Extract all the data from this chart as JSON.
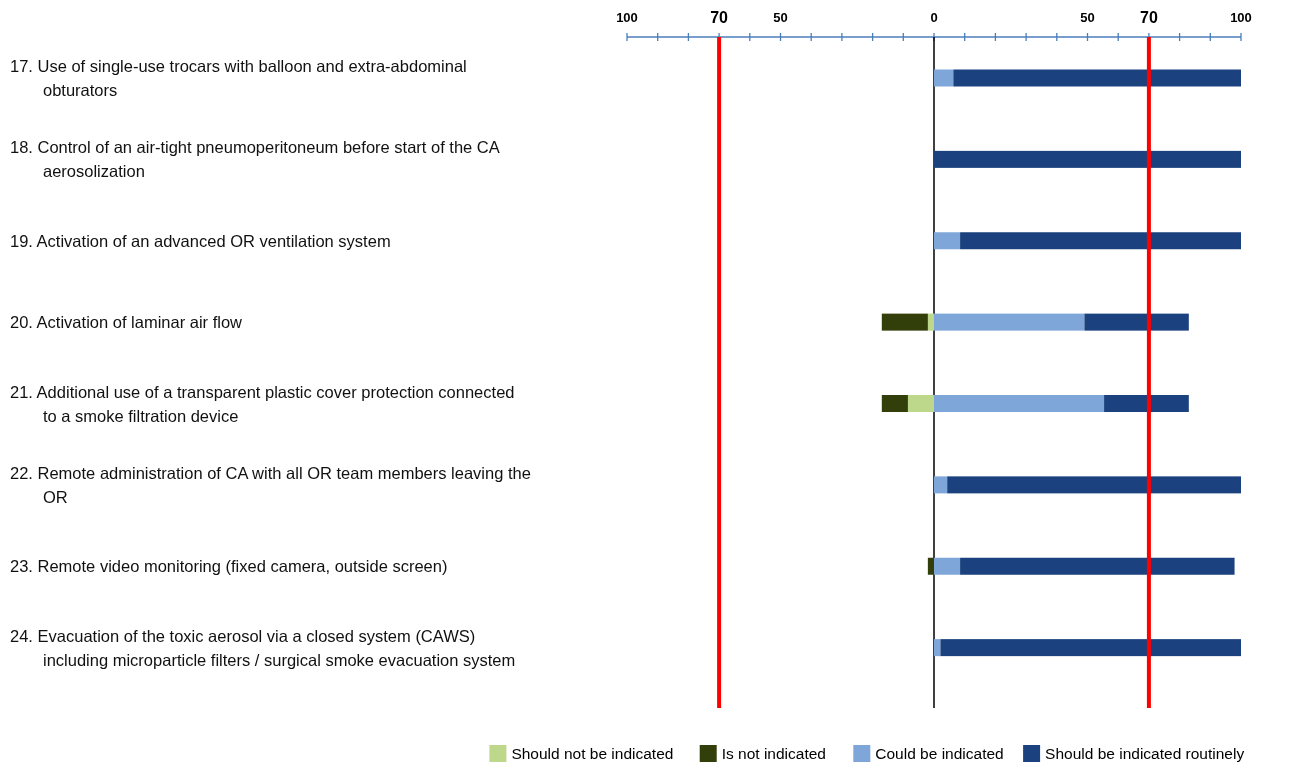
{
  "chart_data": {
    "type": "bar",
    "orientation": "horizontal",
    "stacked": true,
    "categories": [
      "17. Use of single-use trocars with balloon and extra-abdominal obturators",
      "18. Control of an air-tight pneumoperitoneum before start of the CA aerosolization",
      "19. Activation of an advanced OR ventilation system",
      "20. Activation of laminar air flow",
      "21. Additional use of a transparent plastic cover protection connected to a smoke filtration device",
      "22. Remote administration of CA with all OR team members leaving the OR",
      "23. Remote video monitoring (fixed camera, outside screen)",
      "24. Evacuation of the toxic aerosol via a closed system (CAWS) including microparticle filters / surgical smoke evacuation system"
    ],
    "series": [
      {
        "name": "Should not be indicated",
        "color": "#bdd88a",
        "values": [
          0,
          0,
          0,
          -2,
          -8.5,
          0,
          0,
          0
        ]
      },
      {
        "name": "Is not indicated",
        "color": "#333f0a",
        "values": [
          0,
          0,
          0,
          -15,
          -8.5,
          0,
          -2,
          0
        ]
      },
      {
        "name": "Could be indicated",
        "color": "#7fa6d9",
        "values": [
          6.3,
          0,
          8.5,
          49,
          55.4,
          4.3,
          8.5,
          2.1
        ]
      },
      {
        "name": "Should be indicated routinely",
        "color": "#1b417e",
        "values": [
          93.7,
          100,
          91.5,
          34,
          27.6,
          95.7,
          89.4,
          97.9
        ]
      }
    ],
    "xlim": [
      -100,
      100
    ],
    "xticks": [
      {
        "value": -100,
        "label": "100"
      },
      {
        "value": -90,
        "label": null
      },
      {
        "value": -80,
        "label": null
      },
      {
        "value": -70,
        "label": "70"
      },
      {
        "value": -60,
        "label": null
      },
      {
        "value": -50,
        "label": "50"
      },
      {
        "value": -40,
        "label": null
      },
      {
        "value": -30,
        "label": null
      },
      {
        "value": -20,
        "label": null
      },
      {
        "value": -10,
        "label": null
      },
      0,
      {
        "value": 10,
        "label": null
      },
      {
        "value": 20,
        "label": null
      },
      {
        "value": 30,
        "label": null
      },
      {
        "value": 40,
        "label": null
      },
      50,
      {
        "value": 60,
        "label": null
      },
      {
        "value": 70,
        "label": "70"
      },
      {
        "value": 80,
        "label": null
      },
      {
        "value": 90,
        "label": null
      },
      100
    ],
    "ref_lines": [
      {
        "axis": "x",
        "value": -70,
        "color": "#ff0000"
      },
      {
        "axis": "x",
        "value": 70,
        "color": "#ff0000"
      }
    ],
    "legend": "bottom"
  }
}
